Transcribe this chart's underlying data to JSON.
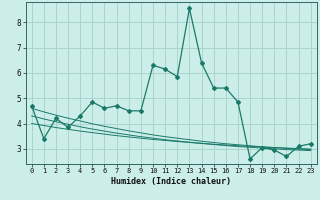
{
  "xlabel": "Humidex (Indice chaleur)",
  "background_color": "#cceee8",
  "grid_color": "#aad4ce",
  "line_color": "#1a7a6a",
  "x_data": [
    0,
    1,
    2,
    3,
    4,
    5,
    6,
    7,
    8,
    9,
    10,
    11,
    12,
    13,
    14,
    15,
    16,
    17,
    18,
    19,
    20,
    21,
    22,
    23
  ],
  "y_main": [
    4.7,
    3.4,
    4.2,
    3.85,
    4.3,
    4.85,
    4.6,
    4.7,
    4.5,
    4.5,
    6.3,
    6.15,
    5.85,
    8.55,
    6.4,
    5.4,
    5.4,
    4.85,
    2.6,
    3.05,
    2.95,
    2.7,
    3.1,
    3.2
  ],
  "y_trend1": [
    4.3,
    4.18,
    4.07,
    3.97,
    3.87,
    3.78,
    3.7,
    3.62,
    3.55,
    3.48,
    3.42,
    3.36,
    3.31,
    3.26,
    3.21,
    3.17,
    3.13,
    3.09,
    3.06,
    3.03,
    3.0,
    2.97,
    2.95,
    2.93
  ],
  "y_trend2": [
    4.0,
    3.92,
    3.84,
    3.77,
    3.7,
    3.64,
    3.58,
    3.52,
    3.47,
    3.42,
    3.37,
    3.33,
    3.29,
    3.25,
    3.22,
    3.18,
    3.15,
    3.12,
    3.1,
    3.07,
    3.05,
    3.03,
    3.01,
    2.99
  ],
  "y_trend3": [
    4.6,
    4.46,
    4.33,
    4.21,
    4.1,
    3.99,
    3.89,
    3.8,
    3.71,
    3.63,
    3.55,
    3.48,
    3.42,
    3.36,
    3.3,
    3.25,
    3.2,
    3.16,
    3.12,
    3.08,
    3.05,
    3.02,
    2.99,
    2.97
  ],
  "ylim": [
    2.4,
    8.8
  ],
  "xlim": [
    -0.5,
    23.5
  ],
  "yticks": [
    3,
    4,
    5,
    6,
    7,
    8
  ],
  "xticks": [
    0,
    1,
    2,
    3,
    4,
    5,
    6,
    7,
    8,
    9,
    10,
    11,
    12,
    13,
    14,
    15,
    16,
    17,
    18,
    19,
    20,
    21,
    22,
    23
  ]
}
